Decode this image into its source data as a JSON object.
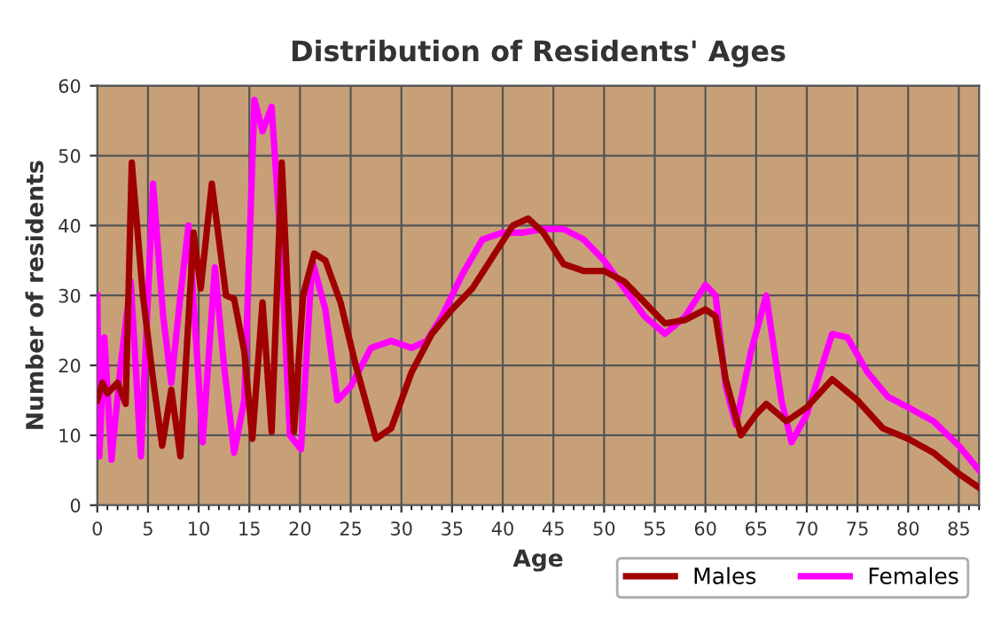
{
  "chart_data": {
    "type": "line",
    "title": "Distribution of Residents' Ages",
    "xlabel": "Age",
    "ylabel": "Number of residents",
    "xlim": [
      0,
      87
    ],
    "ylim": [
      0,
      60
    ],
    "xticks": [
      0,
      5,
      10,
      15,
      20,
      25,
      30,
      35,
      40,
      45,
      50,
      55,
      60,
      65,
      70,
      75,
      80,
      85
    ],
    "yticks": [
      0,
      10,
      20,
      30,
      40,
      50,
      60
    ],
    "grid": true,
    "legend": "bottom right",
    "series": [
      {
        "name": "Males",
        "color": "#a00000",
        "x": [
          0,
          0.5,
          1,
          2,
          2.8,
          3.4,
          4.5,
          5.5,
          6.4,
          7.3,
          8.2,
          9.5,
          10.2,
          11.3,
          12.7,
          13.5,
          14.5,
          15.3,
          16.3,
          17.2,
          18.2,
          19.4,
          20.3,
          21.4,
          22.5,
          24,
          25.5,
          27.5,
          29,
          31,
          33,
          35,
          37,
          39,
          41,
          42.5,
          44,
          46,
          48,
          50,
          52,
          54,
          56,
          58,
          60,
          61,
          62,
          63.5,
          65,
          66,
          68,
          70,
          72.5,
          75,
          77.5,
          80,
          82.5,
          85,
          87
        ],
        "values": [
          15,
          17.5,
          16,
          17.5,
          14.5,
          49,
          30,
          18,
          8.5,
          16.5,
          7,
          39,
          31,
          46,
          30,
          29.5,
          22,
          9.5,
          29,
          10.5,
          49,
          10.5,
          30,
          36,
          35,
          29,
          20,
          9.5,
          11,
          19,
          24.5,
          28,
          31,
          35.5,
          40,
          41,
          39,
          34.5,
          33.5,
          33.5,
          32,
          29,
          26,
          26.5,
          28,
          27,
          18,
          10,
          13,
          14.5,
          12,
          14,
          18,
          15,
          11,
          9.5,
          7.5,
          4.5,
          2.5
        ]
      },
      {
        "name": "Females",
        "color": "#ff00ff",
        "x": [
          0,
          0.2,
          0.7,
          1.4,
          2.3,
          3.3,
          4.3,
          5.5,
          6.5,
          7.3,
          8.2,
          9,
          10.4,
          11.6,
          12.5,
          13.5,
          14.5,
          15.5,
          16.3,
          17.2,
          18.2,
          19,
          20.1,
          21.2,
          22.5,
          23.7,
          25,
          27,
          29,
          31,
          32.5,
          34,
          36,
          38,
          40,
          42,
          44,
          46,
          48,
          50,
          52,
          54,
          56,
          58,
          60,
          61,
          62,
          63,
          64.5,
          66,
          67.5,
          68.5,
          70,
          72.5,
          74,
          76,
          78,
          80,
          82.5,
          85,
          87
        ],
        "values": [
          30,
          7,
          24,
          6.5,
          20,
          32,
          7,
          46,
          27,
          17.5,
          30,
          40,
          9,
          34,
          20,
          7.5,
          15,
          58,
          53.5,
          57,
          35,
          10,
          8,
          35,
          28,
          15,
          17,
          22.5,
          23.5,
          22.5,
          23.5,
          27,
          33,
          38,
          39,
          39,
          39.5,
          39.5,
          38,
          35,
          31,
          27,
          24.5,
          27,
          31.5,
          30,
          17,
          11.5,
          22,
          30,
          15,
          9,
          13,
          24.5,
          24,
          19,
          15.5,
          14,
          12,
          8.5,
          5
        ]
      }
    ]
  }
}
